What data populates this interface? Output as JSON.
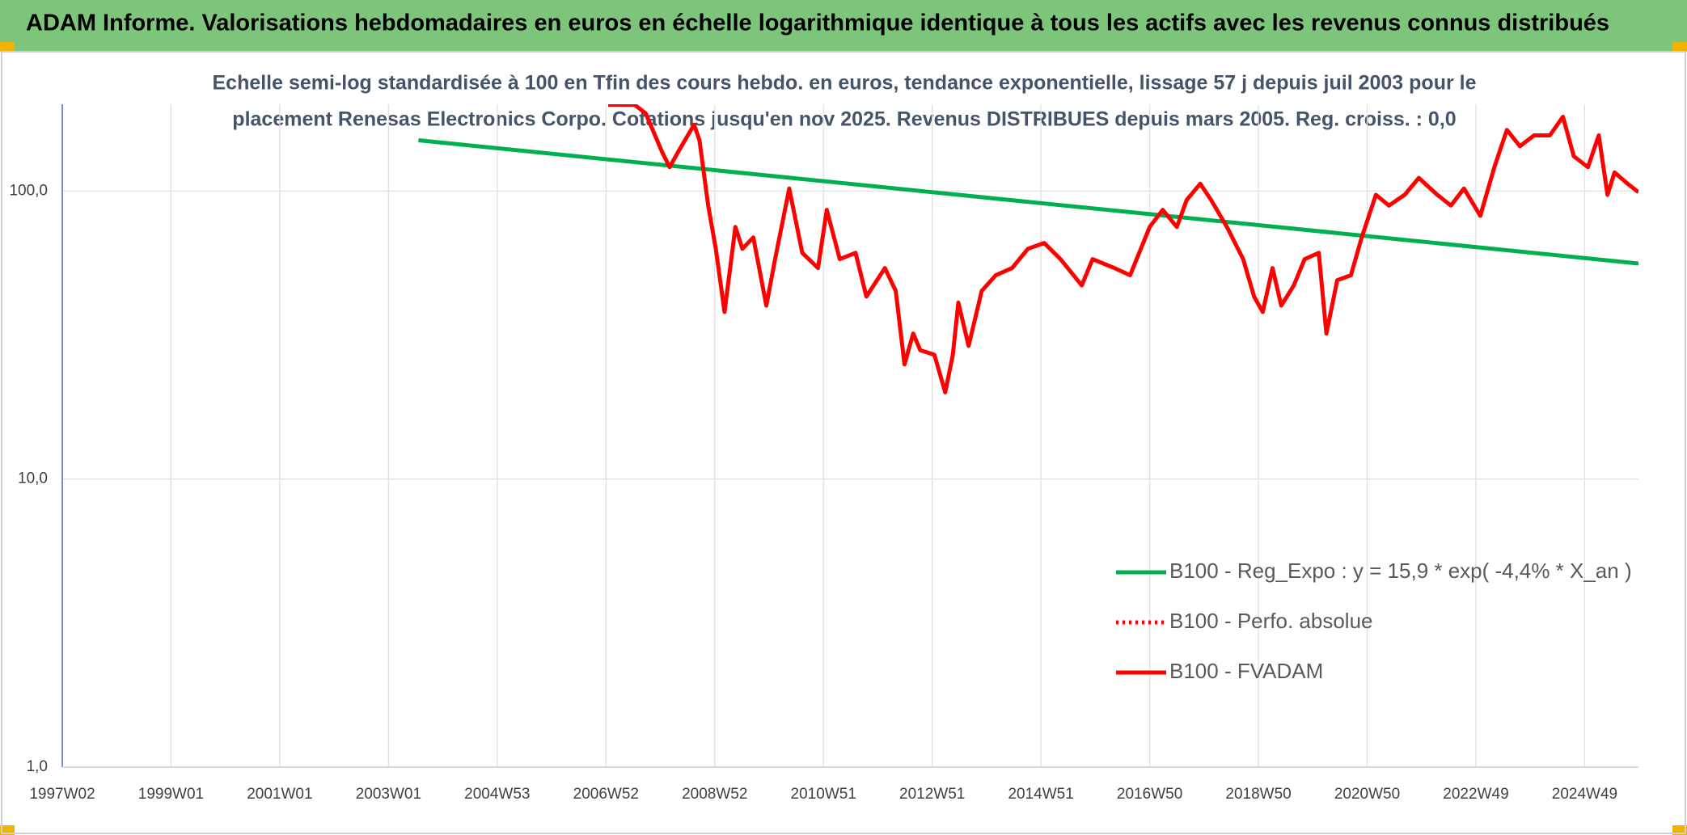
{
  "chart_data": {
    "type": "line",
    "title": "ADAM Informe. Valorisations hebdomadaires en euros en échelle logarithmique identique à tous les actifs avec les revenus connus distribués",
    "subtitle": [
      "Echelle semi-log standardisée à 100 en Tfin des cours hebdo. en euros, tendance exponentielle, lissage 57 j depuis juil 2003 pour le",
      "placement Renesas Electronics Corpo. Cotations jusqu'en nov 2025. Revenus DISTRIBUES depuis mars 2005. Reg. croiss. : 0,0"
    ],
    "log_y": true,
    "grid": true,
    "legend": "lower right",
    "xlim": [
      1997.0,
      2025.99
    ],
    "xticks": [
      {
        "value": 1997.0,
        "label": "1997W02"
      },
      {
        "value": 1999.0,
        "label": "1999W01"
      },
      {
        "value": 2001.0,
        "label": "2001W01"
      },
      {
        "value": 2003.0,
        "label": "2003W01"
      },
      {
        "value": 2005.0,
        "label": "2004W53"
      },
      {
        "value": 2007.0,
        "label": "2006W52"
      },
      {
        "value": 2009.0,
        "label": "2008W52"
      },
      {
        "value": 2011.0,
        "label": "2010W51"
      },
      {
        "value": 2013.0,
        "label": "2012W51"
      },
      {
        "value": 2015.0,
        "label": "2014W51"
      },
      {
        "value": 2017.0,
        "label": "2016W50"
      },
      {
        "value": 2019.0,
        "label": "2018W50"
      },
      {
        "value": 2021.0,
        "label": "2020W50"
      },
      {
        "value": 2023.0,
        "label": "2022W49"
      },
      {
        "value": 2025.0,
        "label": "2024W49"
      }
    ],
    "ylim": [
      1,
      200
    ],
    "yticks": [
      {
        "value": 1,
        "label": "1,0"
      },
      {
        "value": 10,
        "label": "10,0"
      },
      {
        "value": 100,
        "label": "100,0"
      }
    ],
    "series": [
      {
        "name": "B100 - Reg_Expo : y = 15,9 * exp( -4,4% *  X_an )",
        "color": "#00b050",
        "style": "solid",
        "x": [
          2003.55,
          2025.99
        ],
        "values": [
          150,
          56
        ]
      },
      {
        "name": "B100 - Perfo. absolue",
        "color": "#ff0000",
        "style": "dotted",
        "x": [],
        "values": []
      },
      {
        "name": "B100 - FVADAM",
        "color": "#ff0000",
        "style": "solid",
        "x": [
          2007.04,
          2007.53,
          2007.73,
          2008.03,
          2008.17,
          2008.33,
          2008.62,
          2008.72,
          2008.88,
          2009.02,
          2009.18,
          2009.38,
          2009.51,
          2009.71,
          2009.95,
          2010.11,
          2010.37,
          2010.61,
          2010.9,
          2011.06,
          2011.3,
          2011.59,
          2011.79,
          2012.13,
          2012.33,
          2012.49,
          2012.65,
          2012.78,
          2013.04,
          2013.24,
          2013.38,
          2013.48,
          2013.67,
          2013.91,
          2014.17,
          2014.47,
          2014.76,
          2015.06,
          2015.36,
          2015.75,
          2015.95,
          2016.35,
          2016.64,
          2017.0,
          2017.24,
          2017.5,
          2017.68,
          2017.93,
          2018.13,
          2018.42,
          2018.72,
          2018.92,
          2019.08,
          2019.26,
          2019.42,
          2019.65,
          2019.85,
          2020.11,
          2020.25,
          2020.45,
          2020.7,
          2020.9,
          2021.16,
          2021.4,
          2021.69,
          2021.95,
          2022.29,
          2022.54,
          2022.78,
          2023.08,
          2023.34,
          2023.57,
          2023.81,
          2024.07,
          2024.36,
          2024.6,
          2024.8,
          2025.06,
          2025.26,
          2025.42,
          2025.55,
          2025.79,
          2025.99
        ],
        "values": [
          199,
          199,
          186,
          137,
          121,
          137,
          170,
          150,
          89,
          63,
          38,
          75,
          63,
          69,
          40,
          58,
          102,
          61,
          54,
          86,
          58,
          61,
          43,
          54,
          45,
          25,
          32,
          28,
          27,
          20,
          27,
          41,
          29,
          45,
          51,
          54,
          63,
          66,
          58,
          47,
          58,
          54,
          51,
          75,
          86,
          75,
          93,
          106,
          93,
          75,
          58,
          43,
          38,
          54,
          40,
          47,
          58,
          61,
          32,
          49,
          51,
          69,
          97,
          89,
          97,
          111,
          97,
          89,
          102,
          82,
          121,
          163,
          143,
          156,
          156,
          181,
          132,
          121,
          156,
          97,
          116,
          106,
          99
        ]
      }
    ]
  }
}
